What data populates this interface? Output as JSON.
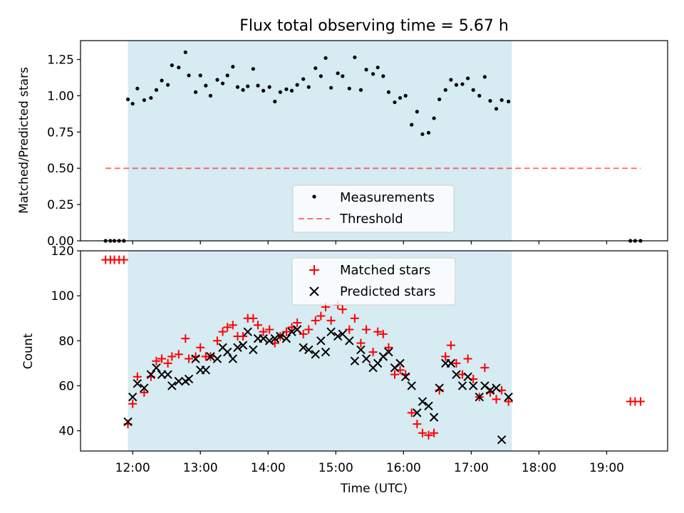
{
  "title": "Flux total observing time = 5.67 h",
  "colors": {
    "band": "#add8e6",
    "threshold": "#ff0000",
    "measurement": "#000000",
    "matched": "#ff0000",
    "predicted": "#000000"
  },
  "chart_data": [
    {
      "type": "scatter",
      "panel": "top",
      "title": "Flux total observing time = 5.67 h",
      "ylabel": "Matched/Predicted stars",
      "xlabel": "",
      "xlim": [
        11.23,
        19.9
      ],
      "ylim": [
        0,
        1.38
      ],
      "yticks": [
        0.0,
        0.25,
        0.5,
        0.75,
        1.0,
        1.25
      ],
      "ytick_labels": [
        "0.00",
        "0.25",
        "0.50",
        "0.75",
        "1.00",
        "1.25"
      ],
      "observing_window": [
        11.93,
        17.6
      ],
      "threshold": {
        "y": 0.5,
        "x_range": [
          11.6,
          19.5
        ]
      },
      "legend": {
        "position": "lower-center",
        "entries": [
          "Measurements",
          "Threshold"
        ]
      },
      "series": [
        {
          "name": "Measurements",
          "points": [
            [
              11.6,
              0
            ],
            [
              11.67,
              0
            ],
            [
              11.73,
              0
            ],
            [
              11.8,
              0
            ],
            [
              11.87,
              0
            ],
            [
              11.93,
              0.975
            ],
            [
              12.0,
              0.945
            ],
            [
              12.07,
              1.05
            ],
            [
              12.17,
              0.97
            ],
            [
              12.27,
              0.985
            ],
            [
              12.35,
              1.04
            ],
            [
              12.43,
              1.105
            ],
            [
              12.52,
              1.075
            ],
            [
              12.58,
              1.21
            ],
            [
              12.68,
              1.195
            ],
            [
              12.78,
              1.3
            ],
            [
              12.83,
              1.14
            ],
            [
              12.93,
              1.025
            ],
            [
              13.0,
              1.14
            ],
            [
              13.08,
              1.07
            ],
            [
              13.15,
              1.0
            ],
            [
              13.25,
              1.11
            ],
            [
              13.33,
              1.085
            ],
            [
              13.4,
              1.14
            ],
            [
              13.48,
              1.2
            ],
            [
              13.55,
              1.06
            ],
            [
              13.63,
              1.04
            ],
            [
              13.7,
              1.065
            ],
            [
              13.78,
              1.185
            ],
            [
              13.85,
              1.07
            ],
            [
              13.93,
              1.035
            ],
            [
              14.02,
              1.06
            ],
            [
              14.1,
              0.96
            ],
            [
              14.18,
              1.025
            ],
            [
              14.27,
              1.045
            ],
            [
              14.35,
              1.035
            ],
            [
              14.43,
              1.075
            ],
            [
              14.52,
              1.115
            ],
            [
              14.6,
              1.06
            ],
            [
              14.7,
              1.19
            ],
            [
              14.78,
              1.135
            ],
            [
              14.85,
              1.26
            ],
            [
              14.93,
              1.055
            ],
            [
              15.03,
              1.155
            ],
            [
              15.1,
              1.135
            ],
            [
              15.2,
              1.05
            ],
            [
              15.28,
              1.265
            ],
            [
              15.37,
              1.04
            ],
            [
              15.45,
              1.18
            ],
            [
              15.55,
              1.15
            ],
            [
              15.62,
              1.195
            ],
            [
              15.7,
              1.135
            ],
            [
              15.78,
              1.025
            ],
            [
              15.87,
              0.955
            ],
            [
              15.95,
              0.985
            ],
            [
              16.03,
              1.0
            ],
            [
              16.12,
              0.8
            ],
            [
              16.2,
              0.89
            ],
            [
              16.28,
              0.735
            ],
            [
              16.37,
              0.745
            ],
            [
              16.45,
              0.845
            ],
            [
              16.53,
              0.975
            ],
            [
              16.62,
              1.04
            ],
            [
              16.7,
              1.11
            ],
            [
              16.78,
              1.075
            ],
            [
              16.87,
              1.08
            ],
            [
              16.95,
              1.12
            ],
            [
              17.03,
              1.04
            ],
            [
              17.12,
              1.0
            ],
            [
              17.2,
              1.13
            ],
            [
              17.28,
              0.965
            ],
            [
              17.37,
              0.91
            ],
            [
              17.45,
              0.97
            ],
            [
              17.55,
              0.96
            ],
            [
              19.35,
              0
            ],
            [
              19.42,
              0
            ],
            [
              19.5,
              0
            ]
          ]
        }
      ]
    },
    {
      "type": "scatter",
      "panel": "bottom",
      "xlabel": "Time (UTC)",
      "ylabel": "Count",
      "xlim": [
        11.23,
        19.9
      ],
      "ylim": [
        31,
        120
      ],
      "xticks": [
        12,
        13,
        14,
        15,
        16,
        17,
        18,
        19
      ],
      "xtick_labels": [
        "12:00",
        "13:00",
        "14:00",
        "15:00",
        "16:00",
        "17:00",
        "18:00",
        "19:00"
      ],
      "yticks": [
        40,
        60,
        80,
        100,
        120
      ],
      "ytick_labels": [
        "40",
        "60",
        "80",
        "100",
        "120"
      ],
      "observing_window": [
        11.93,
        17.6
      ],
      "legend": {
        "position": "upper-center",
        "entries": [
          "Matched stars",
          "Predicted stars"
        ]
      },
      "series": [
        {
          "name": "Matched stars",
          "marker": "plus",
          "points": [
            [
              11.6,
              116
            ],
            [
              11.67,
              116
            ],
            [
              11.73,
              116
            ],
            [
              11.8,
              116
            ],
            [
              11.87,
              116
            ],
            [
              11.93,
              43
            ],
            [
              12.0,
              52
            ],
            [
              12.07,
              64
            ],
            [
              12.17,
              57
            ],
            [
              12.27,
              64
            ],
            [
              12.35,
              71
            ],
            [
              12.43,
              72
            ],
            [
              12.52,
              70
            ],
            [
              12.58,
              73
            ],
            [
              12.68,
              74
            ],
            [
              12.78,
              81
            ],
            [
              12.83,
              72
            ],
            [
              12.93,
              73
            ],
            [
              13.0,
              77
            ],
            [
              13.08,
              73
            ],
            [
              13.15,
              73
            ],
            [
              13.25,
              80
            ],
            [
              13.33,
              84
            ],
            [
              13.4,
              86
            ],
            [
              13.48,
              87
            ],
            [
              13.55,
              82
            ],
            [
              13.63,
              82
            ],
            [
              13.7,
              90
            ],
            [
              13.78,
              90
            ],
            [
              13.85,
              87
            ],
            [
              13.93,
              84
            ],
            [
              14.02,
              85
            ],
            [
              14.1,
              79
            ],
            [
              14.18,
              82
            ],
            [
              14.27,
              84
            ],
            [
              14.35,
              86
            ],
            [
              14.43,
              88
            ],
            [
              14.52,
              83
            ],
            [
              14.6,
              85
            ],
            [
              14.7,
              89
            ],
            [
              14.78,
              91
            ],
            [
              14.85,
              95
            ],
            [
              14.93,
              89
            ],
            [
              15.03,
              96
            ],
            [
              15.1,
              94
            ],
            [
              15.2,
              85
            ],
            [
              15.28,
              90
            ],
            [
              15.37,
              79
            ],
            [
              15.45,
              85
            ],
            [
              15.55,
              75
            ],
            [
              15.62,
              84
            ],
            [
              15.7,
              83
            ],
            [
              15.78,
              77
            ],
            [
              15.87,
              65
            ],
            [
              15.95,
              67
            ],
            [
              16.03,
              65
            ],
            [
              16.12,
              48
            ],
            [
              16.2,
              43
            ],
            [
              16.28,
              39
            ],
            [
              16.37,
              38
            ],
            [
              16.45,
              39
            ],
            [
              16.53,
              58
            ],
            [
              16.62,
              73
            ],
            [
              16.7,
              78
            ],
            [
              16.78,
              70
            ],
            [
              16.87,
              65
            ],
            [
              16.95,
              72
            ],
            [
              17.03,
              63
            ],
            [
              17.12,
              55
            ],
            [
              17.2,
              68
            ],
            [
              17.28,
              57
            ],
            [
              17.37,
              54
            ],
            [
              17.45,
              58
            ],
            [
              17.55,
              53
            ],
            [
              19.35,
              53
            ],
            [
              19.42,
              53
            ],
            [
              19.5,
              53
            ]
          ]
        },
        {
          "name": "Predicted stars",
          "marker": "x",
          "points": [
            [
              11.93,
              44
            ],
            [
              12.0,
              55
            ],
            [
              12.07,
              61
            ],
            [
              12.17,
              59
            ],
            [
              12.27,
              65
            ],
            [
              12.35,
              68
            ],
            [
              12.43,
              65
            ],
            [
              12.52,
              65
            ],
            [
              12.58,
              60
            ],
            [
              12.68,
              62
            ],
            [
              12.78,
              62
            ],
            [
              12.83,
              63
            ],
            [
              12.93,
              72
            ],
            [
              13.0,
              67
            ],
            [
              13.08,
              67
            ],
            [
              13.15,
              73
            ],
            [
              13.25,
              72
            ],
            [
              13.33,
              77
            ],
            [
              13.4,
              75
            ],
            [
              13.48,
              72
            ],
            [
              13.55,
              77
            ],
            [
              13.63,
              78
            ],
            [
              13.7,
              84
            ],
            [
              13.78,
              76
            ],
            [
              13.85,
              81
            ],
            [
              13.93,
              81
            ],
            [
              14.02,
              80
            ],
            [
              14.1,
              81
            ],
            [
              14.18,
              82
            ],
            [
              14.27,
              81
            ],
            [
              14.35,
              84
            ],
            [
              14.43,
              85
            ],
            [
              14.52,
              77
            ],
            [
              14.6,
              76
            ],
            [
              14.7,
              74
            ],
            [
              14.78,
              80
            ],
            [
              14.85,
              75
            ],
            [
              14.93,
              84
            ],
            [
              15.03,
              82
            ],
            [
              15.1,
              83
            ],
            [
              15.2,
              80
            ],
            [
              15.28,
              71
            ],
            [
              15.37,
              76
            ],
            [
              15.45,
              72
            ],
            [
              15.55,
              68
            ],
            [
              15.62,
              70
            ],
            [
              15.7,
              73
            ],
            [
              15.78,
              75
            ],
            [
              15.87,
              68
            ],
            [
              15.95,
              70
            ],
            [
              16.03,
              64
            ],
            [
              16.12,
              60
            ],
            [
              16.2,
              48
            ],
            [
              16.28,
              53
            ],
            [
              16.37,
              51
            ],
            [
              16.45,
              46
            ],
            [
              16.53,
              59
            ],
            [
              16.62,
              70
            ],
            [
              16.7,
              70
            ],
            [
              16.78,
              65
            ],
            [
              16.87,
              60
            ],
            [
              16.95,
              64
            ],
            [
              17.03,
              60
            ],
            [
              17.12,
              55
            ],
            [
              17.2,
              60
            ],
            [
              17.28,
              58
            ],
            [
              17.37,
              59
            ],
            [
              17.45,
              36
            ],
            [
              17.55,
              55
            ]
          ]
        }
      ]
    }
  ]
}
